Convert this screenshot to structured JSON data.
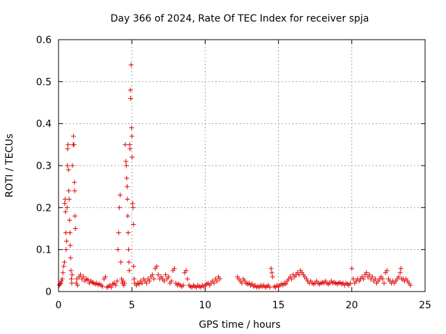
{
  "chart_data": {
    "type": "scatter",
    "title": "Day 366 of 2024, Rate Of TEC Index for receiver spja",
    "xlabel": "GPS time / hours",
    "ylabel": "ROTI / TECUs",
    "xlim": [
      0,
      25
    ],
    "ylim": [
      0,
      0.6
    ],
    "x_ticks": [
      0,
      5,
      10,
      15,
      20,
      25
    ],
    "x_tick_labels": [
      "0",
      "5",
      "10",
      "15",
      "20",
      "25"
    ],
    "y_ticks": [
      0,
      0.1,
      0.2,
      0.3,
      0.4,
      0.5,
      0.6
    ],
    "y_tick_labels": [
      "0",
      "0.1",
      "0.2",
      "0.3",
      "0.4",
      "0.5",
      "0.6"
    ],
    "grid": true,
    "marker": "+",
    "color": "#e00000",
    "series": [
      {
        "name": "ROTI",
        "points": [
          [
            0.05,
            0.015
          ],
          [
            0.1,
            0.018
          ],
          [
            0.15,
            0.02
          ],
          [
            0.2,
            0.025
          ],
          [
            0.25,
            0.03
          ],
          [
            0.3,
            0.045
          ],
          [
            0.35,
            0.06
          ],
          [
            0.4,
            0.07
          ],
          [
            0.42,
            0.21
          ],
          [
            0.45,
            0.22
          ],
          [
            0.48,
            0.19
          ],
          [
            0.5,
            0.14
          ],
          [
            0.52,
            0.1
          ],
          [
            0.55,
            0.12
          ],
          [
            0.58,
            0.2
          ],
          [
            0.6,
            0.3
          ],
          [
            0.62,
            0.34
          ],
          [
            0.65,
            0.35
          ],
          [
            0.68,
            0.29
          ],
          [
            0.7,
            0.24
          ],
          [
            0.72,
            0.22
          ],
          [
            0.75,
            0.17
          ],
          [
            0.78,
            0.14
          ],
          [
            0.8,
            0.11
          ],
          [
            0.82,
            0.08
          ],
          [
            0.85,
            0.05
          ],
          [
            0.88,
            0.03
          ],
          [
            0.9,
            0.02
          ],
          [
            0.92,
            0.04
          ],
          [
            0.95,
            0.3
          ],
          [
            1.0,
            0.35
          ],
          [
            1.02,
            0.37
          ],
          [
            1.05,
            0.35
          ],
          [
            1.08,
            0.26
          ],
          [
            1.1,
            0.24
          ],
          [
            1.12,
            0.18
          ],
          [
            1.15,
            0.15
          ],
          [
            1.2,
            0.02
          ],
          [
            1.25,
            0.03
          ],
          [
            1.3,
            0.015
          ],
          [
            1.4,
            0.035
          ],
          [
            1.5,
            0.04
          ],
          [
            1.6,
            0.03
          ],
          [
            1.7,
            0.035
          ],
          [
            1.8,
            0.025
          ],
          [
            1.9,
            0.03
          ],
          [
            2.0,
            0.028
          ],
          [
            2.1,
            0.02
          ],
          [
            2.2,
            0.025
          ],
          [
            2.3,
            0.022
          ],
          [
            2.4,
            0.02
          ],
          [
            2.5,
            0.018
          ],
          [
            2.6,
            0.02
          ],
          [
            2.7,
            0.016
          ],
          [
            2.8,
            0.018
          ],
          [
            2.9,
            0.015
          ],
          [
            3.0,
            0.012
          ],
          [
            3.1,
            0.03
          ],
          [
            3.2,
            0.035
          ],
          [
            3.3,
            0.01
          ],
          [
            3.4,
            0.012
          ],
          [
            3.5,
            0.015
          ],
          [
            3.6,
            0.01
          ],
          [
            3.7,
            0.018
          ],
          [
            3.8,
            0.02
          ],
          [
            3.9,
            0.015
          ],
          [
            4.0,
            0.025
          ],
          [
            4.05,
            0.1
          ],
          [
            4.1,
            0.14
          ],
          [
            4.15,
            0.2
          ],
          [
            4.2,
            0.23
          ],
          [
            4.25,
            0.07
          ],
          [
            4.3,
            0.03
          ],
          [
            4.35,
            0.02
          ],
          [
            4.4,
            0.025
          ],
          [
            4.45,
            0.015
          ],
          [
            4.5,
            0.02
          ],
          [
            4.55,
            0.35
          ],
          [
            4.6,
            0.31
          ],
          [
            4.62,
            0.3
          ],
          [
            4.65,
            0.27
          ],
          [
            4.68,
            0.25
          ],
          [
            4.7,
            0.22
          ],
          [
            4.72,
            0.18
          ],
          [
            4.75,
            0.14
          ],
          [
            4.78,
            0.1
          ],
          [
            4.8,
            0.07
          ],
          [
            4.82,
            0.05
          ],
          [
            4.85,
            0.35
          ],
          [
            4.88,
            0.34
          ],
          [
            4.9,
            0.48
          ],
          [
            4.92,
            0.46
          ],
          [
            4.95,
            0.54
          ],
          [
            4.98,
            0.39
          ],
          [
            5.0,
            0.37
          ],
          [
            5.02,
            0.32
          ],
          [
            5.05,
            0.21
          ],
          [
            5.08,
            0.2
          ],
          [
            5.1,
            0.16
          ],
          [
            5.12,
            0.06
          ],
          [
            5.15,
            0.03
          ],
          [
            5.2,
            0.02
          ],
          [
            5.3,
            0.015
          ],
          [
            5.4,
            0.02
          ],
          [
            5.5,
            0.018
          ],
          [
            5.6,
            0.025
          ],
          [
            5.7,
            0.02
          ],
          [
            5.8,
            0.03
          ],
          [
            5.9,
            0.025
          ],
          [
            6.0,
            0.02
          ],
          [
            6.1,
            0.03
          ],
          [
            6.2,
            0.025
          ],
          [
            6.3,
            0.035
          ],
          [
            6.4,
            0.04
          ],
          [
            6.5,
            0.03
          ],
          [
            6.6,
            0.055
          ],
          [
            6.7,
            0.06
          ],
          [
            6.8,
            0.04
          ],
          [
            6.9,
            0.03
          ],
          [
            7.0,
            0.035
          ],
          [
            7.1,
            0.03
          ],
          [
            7.2,
            0.025
          ],
          [
            7.3,
            0.04
          ],
          [
            7.4,
            0.03
          ],
          [
            7.5,
            0.035
          ],
          [
            7.6,
            0.02
          ],
          [
            7.7,
            0.025
          ],
          [
            7.8,
            0.05
          ],
          [
            7.9,
            0.055
          ],
          [
            8.0,
            0.02
          ],
          [
            8.1,
            0.015
          ],
          [
            8.2,
            0.018
          ],
          [
            8.3,
            0.015
          ],
          [
            8.4,
            0.012
          ],
          [
            8.5,
            0.015
          ],
          [
            8.6,
            0.045
          ],
          [
            8.7,
            0.05
          ],
          [
            8.8,
            0.03
          ],
          [
            8.9,
            0.015
          ],
          [
            9.0,
            0.012
          ],
          [
            9.1,
            0.01
          ],
          [
            9.2,
            0.015
          ],
          [
            9.3,
            0.012
          ],
          [
            9.4,
            0.01
          ],
          [
            9.5,
            0.015
          ],
          [
            9.6,
            0.012
          ],
          [
            9.7,
            0.01
          ],
          [
            9.8,
            0.015
          ],
          [
            9.9,
            0.012
          ],
          [
            10.0,
            0.015
          ],
          [
            10.1,
            0.018
          ],
          [
            10.2,
            0.02
          ],
          [
            10.3,
            0.015
          ],
          [
            10.4,
            0.02
          ],
          [
            10.5,
            0.025
          ],
          [
            10.6,
            0.02
          ],
          [
            10.7,
            0.03
          ],
          [
            10.8,
            0.025
          ],
          [
            10.9,
            0.035
          ],
          [
            11.0,
            0.03
          ],
          [
            12.2,
            0.035
          ],
          [
            12.3,
            0.03
          ],
          [
            12.4,
            0.025
          ],
          [
            12.5,
            0.02
          ],
          [
            12.6,
            0.03
          ],
          [
            12.7,
            0.025
          ],
          [
            12.8,
            0.02
          ],
          [
            12.9,
            0.018
          ],
          [
            13.0,
            0.02
          ],
          [
            13.1,
            0.015
          ],
          [
            13.2,
            0.018
          ],
          [
            13.3,
            0.012
          ],
          [
            13.4,
            0.015
          ],
          [
            13.5,
            0.01
          ],
          [
            13.6,
            0.012
          ],
          [
            13.7,
            0.01
          ],
          [
            13.8,
            0.015
          ],
          [
            13.9,
            0.012
          ],
          [
            14.0,
            0.015
          ],
          [
            14.1,
            0.01
          ],
          [
            14.2,
            0.012
          ],
          [
            14.3,
            0.015
          ],
          [
            14.4,
            0.01
          ],
          [
            14.5,
            0.055
          ],
          [
            14.55,
            0.045
          ],
          [
            14.6,
            0.035
          ],
          [
            14.7,
            0.012
          ],
          [
            14.8,
            0.01
          ],
          [
            14.9,
            0.015
          ],
          [
            15.0,
            0.012
          ],
          [
            15.1,
            0.015
          ],
          [
            15.2,
            0.018
          ],
          [
            15.3,
            0.015
          ],
          [
            15.4,
            0.02
          ],
          [
            15.5,
            0.018
          ],
          [
            15.6,
            0.025
          ],
          [
            15.7,
            0.03
          ],
          [
            15.8,
            0.035
          ],
          [
            15.9,
            0.03
          ],
          [
            16.0,
            0.04
          ],
          [
            16.1,
            0.035
          ],
          [
            16.2,
            0.04
          ],
          [
            16.3,
            0.045
          ],
          [
            16.4,
            0.04
          ],
          [
            16.5,
            0.05
          ],
          [
            16.6,
            0.045
          ],
          [
            16.7,
            0.04
          ],
          [
            16.8,
            0.035
          ],
          [
            16.9,
            0.03
          ],
          [
            17.0,
            0.025
          ],
          [
            17.1,
            0.02
          ],
          [
            17.2,
            0.025
          ],
          [
            17.3,
            0.02
          ],
          [
            17.4,
            0.018
          ],
          [
            17.5,
            0.02
          ],
          [
            17.6,
            0.025
          ],
          [
            17.7,
            0.02
          ],
          [
            17.8,
            0.018
          ],
          [
            17.9,
            0.02
          ],
          [
            18.0,
            0.022
          ],
          [
            18.1,
            0.02
          ],
          [
            18.2,
            0.025
          ],
          [
            18.3,
            0.02
          ],
          [
            18.4,
            0.018
          ],
          [
            18.5,
            0.02
          ],
          [
            18.6,
            0.025
          ],
          [
            18.7,
            0.02
          ],
          [
            18.8,
            0.022
          ],
          [
            18.9,
            0.02
          ],
          [
            19.0,
            0.018
          ],
          [
            19.1,
            0.02
          ],
          [
            19.2,
            0.022
          ],
          [
            19.3,
            0.018
          ],
          [
            19.4,
            0.02
          ],
          [
            19.5,
            0.015
          ],
          [
            19.6,
            0.02
          ],
          [
            19.7,
            0.018
          ],
          [
            19.8,
            0.015
          ],
          [
            19.9,
            0.02
          ],
          [
            20.0,
            0.055
          ],
          [
            20.1,
            0.03
          ],
          [
            20.2,
            0.02
          ],
          [
            20.3,
            0.025
          ],
          [
            20.4,
            0.03
          ],
          [
            20.5,
            0.025
          ],
          [
            20.6,
            0.03
          ],
          [
            20.7,
            0.035
          ],
          [
            20.8,
            0.03
          ],
          [
            20.9,
            0.04
          ],
          [
            21.0,
            0.045
          ],
          [
            21.1,
            0.035
          ],
          [
            21.2,
            0.04
          ],
          [
            21.3,
            0.03
          ],
          [
            21.4,
            0.035
          ],
          [
            21.5,
            0.025
          ],
          [
            21.6,
            0.03
          ],
          [
            21.7,
            0.02
          ],
          [
            21.8,
            0.025
          ],
          [
            21.9,
            0.03
          ],
          [
            22.0,
            0.035
          ],
          [
            22.1,
            0.03
          ],
          [
            22.2,
            0.02
          ],
          [
            22.3,
            0.045
          ],
          [
            22.4,
            0.05
          ],
          [
            22.5,
            0.03
          ],
          [
            22.6,
            0.025
          ],
          [
            22.7,
            0.02
          ],
          [
            22.8,
            0.025
          ],
          [
            22.9,
            0.02
          ],
          [
            23.0,
            0.025
          ],
          [
            23.1,
            0.03
          ],
          [
            23.2,
            0.035
          ],
          [
            23.3,
            0.045
          ],
          [
            23.35,
            0.055
          ],
          [
            23.4,
            0.03
          ],
          [
            23.5,
            0.03
          ],
          [
            23.6,
            0.025
          ],
          [
            23.7,
            0.03
          ],
          [
            23.8,
            0.025
          ],
          [
            23.9,
            0.02
          ],
          [
            24.0,
            0.015
          ]
        ]
      }
    ]
  }
}
